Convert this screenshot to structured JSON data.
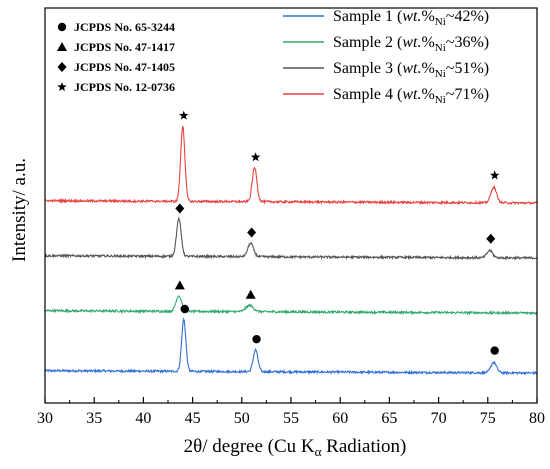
{
  "chart_data": {
    "type": "line",
    "title": "",
    "xlabel": "2θ/ degree (Cu Kα Radiation)",
    "xlabel_parts": {
      "main": "2θ/ degree (Cu K",
      "sub": "α",
      "tail": " Radiation)"
    },
    "ylabel": "Intensity/ a.u.",
    "xlim": [
      30,
      80
    ],
    "x_ticks": [
      30,
      35,
      40,
      45,
      50,
      55,
      60,
      65,
      70,
      75,
      80
    ],
    "y_ticks_shown": false,
    "grid": false,
    "legend_position": "top-right",
    "reference_legend_position": "top-left",
    "references": [
      {
        "marker": "circle",
        "label": "JCPDS No. 65-3244"
      },
      {
        "marker": "triangle",
        "label": "JCPDS No. 47-1417"
      },
      {
        "marker": "diamond",
        "label": "JCPDS No. 47-1405"
      },
      {
        "marker": "star",
        "label": "JCPDS No. 12-0736"
      }
    ],
    "series": [
      {
        "name": "Sample 1 (wt.%Ni~42%)",
        "label_parts": {
          "prefix": "Sample 1 (",
          "italic": "wt.",
          "mid": "%",
          "sub": "Ni",
          "tail": "~42%)"
        },
        "color": "#2f6fd6",
        "baseline_level": 0.22,
        "noise": 0.02,
        "marker": "circle",
        "peaks": [
          {
            "x": 44.1,
            "height": 1.0,
            "width": 0.45
          },
          {
            "x": 51.4,
            "height": 0.42,
            "width": 0.5
          },
          {
            "x": 75.6,
            "height": 0.2,
            "width": 0.6
          }
        ]
      },
      {
        "name": "Sample 2 (wt.%Ni~36%)",
        "label_parts": {
          "prefix": "Sample 2 (",
          "italic": "wt.",
          "mid": "%",
          "sub": "Ni",
          "tail": "~36%)"
        },
        "color": "#2ea86b",
        "baseline_level": 0.22,
        "noise": 0.02,
        "marker": "triangle",
        "peaks": [
          {
            "x": 43.6,
            "height": 0.3,
            "width": 0.6
          },
          {
            "x": 50.8,
            "height": 0.12,
            "width": 0.8
          }
        ]
      },
      {
        "name": "Sample 3 (wt.%Ni~51%)",
        "label_parts": {
          "prefix": "Sample 3 (",
          "italic": "wt.",
          "mid": "%",
          "sub": "Ni",
          "tail": "~51%)"
        },
        "color": "#555555",
        "baseline_level": 0.22,
        "noise": 0.02,
        "marker": "diamond",
        "peaks": [
          {
            "x": 43.6,
            "height": 0.72,
            "width": 0.5
          },
          {
            "x": 50.9,
            "height": 0.26,
            "width": 0.6
          },
          {
            "x": 75.2,
            "height": 0.14,
            "width": 0.6
          }
        ]
      },
      {
        "name": "Sample 4 (wt.%Ni~71%)",
        "label_parts": {
          "prefix": "Sample 4 (",
          "italic": "wt.",
          "mid": "%",
          "sub": "Ni",
          "tail": "~71%)"
        },
        "color": "#e8423f",
        "baseline_level": 0.22,
        "noise": 0.02,
        "marker": "star",
        "peaks": [
          {
            "x": 44.0,
            "height": 1.45,
            "width": 0.45
          },
          {
            "x": 51.3,
            "height": 0.65,
            "width": 0.5
          },
          {
            "x": 75.6,
            "height": 0.3,
            "width": 0.6
          }
        ]
      }
    ]
  }
}
